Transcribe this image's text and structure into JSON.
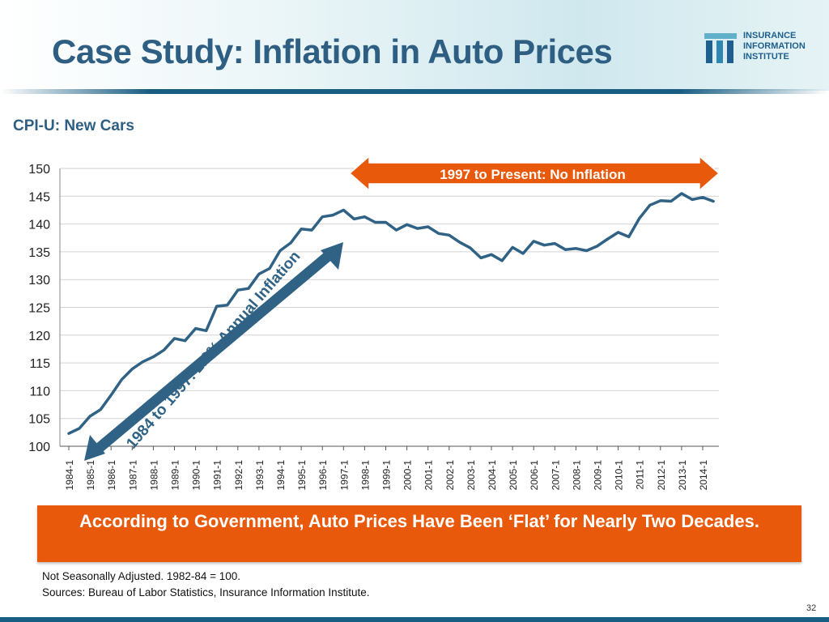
{
  "title": "Case Study: Inflation in Auto Prices",
  "logo": {
    "lines": [
      "INSURANCE",
      "INFORMATION",
      "INSTITUTE"
    ]
  },
  "subtitle": "CPI-U: New Cars",
  "chart_data": {
    "type": "line",
    "title": "CPI-U: New Cars",
    "xlabel": "",
    "ylabel": "",
    "ylim": [
      100,
      150
    ],
    "yticks": [
      100,
      105,
      110,
      115,
      120,
      125,
      130,
      135,
      140,
      145,
      150
    ],
    "categories": [
      "1984-1",
      "1985-1",
      "1986-1",
      "1987-1",
      "1988-1",
      "1989-1",
      "1990-1",
      "1991-1",
      "1992-1",
      "1993-1",
      "1994-1",
      "1995-1",
      "1996-1",
      "1997-1",
      "1998-1",
      "1999-1",
      "2000-1",
      "2001-1",
      "2002-1",
      "2003-1",
      "2004-1",
      "2005-1",
      "2006-1",
      "2007-1",
      "2008-1",
      "2009-1",
      "2010-1",
      "2011-1",
      "2012-1",
      "2013-1",
      "2014-1"
    ],
    "x_labels": [
      "1984-1",
      "1985-1",
      "1986-1",
      "1987-1",
      "1988-1",
      "1989-1",
      "1990-1",
      "1991-1",
      "1992-1",
      "1993-1",
      "1994-1",
      "1995-1",
      "1996-1",
      "1997-1",
      "1998-1",
      "1999-1",
      "2000-1",
      "2001-1",
      "2002-1",
      "2003-1",
      "2004-1",
      "2005-1",
      "2006-1",
      "2007-1",
      "2008-1",
      "2009-1",
      "2010-1",
      "2011-1",
      "2012-1",
      "2013-1",
      "2014-1"
    ],
    "series": [
      {
        "name": "CPI-U: New Cars",
        "color": "#2f6284",
        "x": [
          1984.0,
          1984.5,
          1985.0,
          1985.5,
          1986.0,
          1986.5,
          1987.0,
          1987.5,
          1988.0,
          1988.5,
          1989.0,
          1989.5,
          1990.0,
          1990.5,
          1991.0,
          1991.5,
          1992.0,
          1992.5,
          1993.0,
          1993.5,
          1994.0,
          1994.5,
          1995.0,
          1995.5,
          1996.0,
          1996.5,
          1997.0,
          1997.5,
          1998.0,
          1998.5,
          1999.0,
          1999.5,
          2000.0,
          2000.5,
          2001.0,
          2001.5,
          2002.0,
          2002.5,
          2003.0,
          2003.5,
          2004.0,
          2004.5,
          2005.0,
          2005.5,
          2006.0,
          2006.5,
          2007.0,
          2007.5,
          2008.0,
          2008.5,
          2009.0,
          2009.5,
          2010.0,
          2010.5,
          2011.0,
          2011.5,
          2012.0,
          2012.5,
          2013.0,
          2013.5,
          2014.0,
          2014.5
        ],
        "values": [
          102.3,
          103.2,
          105.4,
          106.6,
          109.2,
          112.0,
          113.9,
          115.2,
          116.1,
          117.3,
          119.4,
          119.0,
          121.2,
          120.8,
          125.2,
          125.4,
          128.1,
          128.4,
          131.0,
          132.0,
          135.2,
          136.6,
          139.1,
          138.9,
          141.3,
          141.6,
          142.5,
          140.9,
          141.3,
          140.3,
          140.3,
          138.9,
          139.9,
          139.2,
          139.5,
          138.3,
          138.0,
          136.7,
          135.7,
          133.9,
          134.5,
          133.4,
          135.8,
          134.7,
          136.9,
          136.2,
          136.5,
          135.4,
          135.6,
          135.2,
          136.0,
          137.3,
          138.5,
          137.7,
          141.0,
          143.4,
          144.2,
          144.1,
          145.5,
          144.4,
          144.8,
          144.1
        ]
      }
    ],
    "annotations": {
      "arrow_1997_present": "1997 to Present: No Inflation",
      "arrow_1984_1997": "1984 to 1997: 2.6% Annual Inflation"
    }
  },
  "banner": {
    "text": "According to Government, Auto Prices Have Been ‘Flat’ for Nearly Two Decades."
  },
  "notes": {
    "line1": "Not Seasonally Adjusted. 1982-84 = 100.",
    "line2": "Sources: Bureau of Labor Statistics, Insurance Information Institute."
  },
  "page_number": "32",
  "colors": {
    "title": "#2e5f82",
    "line": "#2f6284",
    "accent": "#e8590c",
    "band": "#1a5d82"
  }
}
